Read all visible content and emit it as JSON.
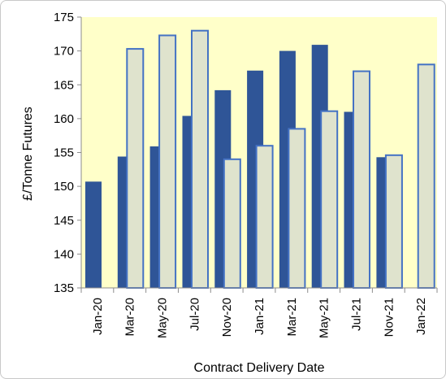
{
  "chart_data": {
    "type": "bar",
    "title": "",
    "xlabel": "Contract Delivery Date",
    "ylabel": "£/Tonne Futures",
    "ylim": [
      135,
      175
    ],
    "yticks": [
      135,
      140,
      145,
      150,
      155,
      160,
      165,
      170,
      175
    ],
    "categories": [
      "Jan-20",
      "Mar-20",
      "May-20",
      "Jul-20",
      "Nov-20",
      "Jan-21",
      "Mar-21",
      "May-21",
      "Jul-21",
      "Nov-21",
      "Jan-22"
    ],
    "series": [
      {
        "values": [
          150.7,
          154.4,
          155.9,
          160.4,
          164.2,
          167.1,
          170.0,
          170.9,
          161.0,
          154.3,
          null
        ],
        "color": "#2f5597"
      },
      {
        "values": [
          null,
          170.3,
          172.3,
          173.0,
          154.0,
          156.0,
          158.5,
          161.1,
          167.0,
          154.6,
          168.0
        ],
        "color": "#dfe3cd",
        "border": "#4472c4"
      }
    ],
    "plot_background": "#ffffc9",
    "grid": false,
    "legend": "none"
  }
}
